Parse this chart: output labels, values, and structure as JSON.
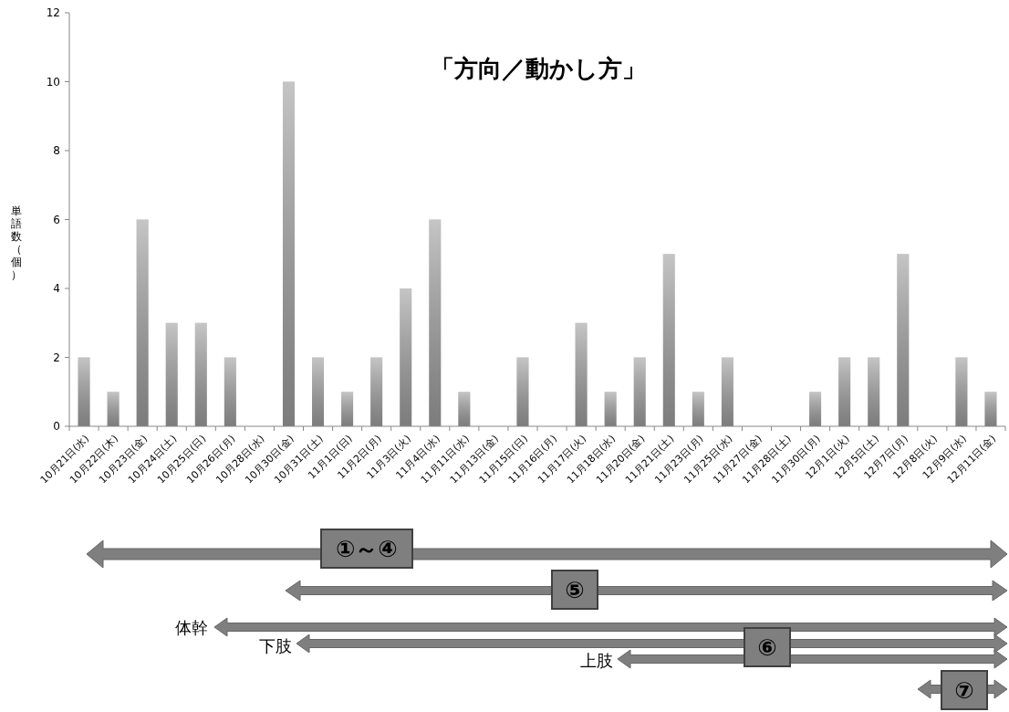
{
  "chart_data": {
    "type": "bar",
    "title": "「方向／動かし方」",
    "ylabel": "単語数（個）",
    "categories": [
      "10月21日(水)",
      "10月22日(木)",
      "10月23日(金)",
      "10月24日(土)",
      "10月25日(日)",
      "10月26日(月)",
      "10月28日(水)",
      "10月30日(金)",
      "10月31日(土)",
      "11月1日(日)",
      "11月2日(月)",
      "11月3日(火)",
      "11月4日(水)",
      "11月11日(水)",
      "11月13日(金)",
      "11月15日(日)",
      "11月16日(月)",
      "11月17日(火)",
      "11月18日(水)",
      "11月20日(金)",
      "11月21日(土)",
      "11月23日(月)",
      "11月25日(水)",
      "11月27日(金)",
      "11月28日(土)",
      "11月30日(月)",
      "12月1日(火)",
      "12月5日(土)",
      "12月7日(月)",
      "12月8日(火)",
      "12月9日(水)",
      "12月11日(金)"
    ],
    "values": [
      2,
      1,
      6,
      3,
      3,
      2,
      0,
      10,
      2,
      1,
      2,
      4,
      6,
      1,
      0,
      2,
      0,
      3,
      1,
      2,
      5,
      1,
      2,
      0,
      0,
      1,
      2,
      2,
      5,
      0,
      2,
      1
    ],
    "color": "#a6a6a6",
    "ylim": [
      0,
      12
    ],
    "yticks": [
      0,
      2,
      4,
      6,
      8,
      10,
      12
    ],
    "grid": false,
    "annotations": [
      "①～④",
      "⑤",
      "体幹",
      "下肢",
      "⑥",
      "上肢",
      "⑦"
    ]
  }
}
